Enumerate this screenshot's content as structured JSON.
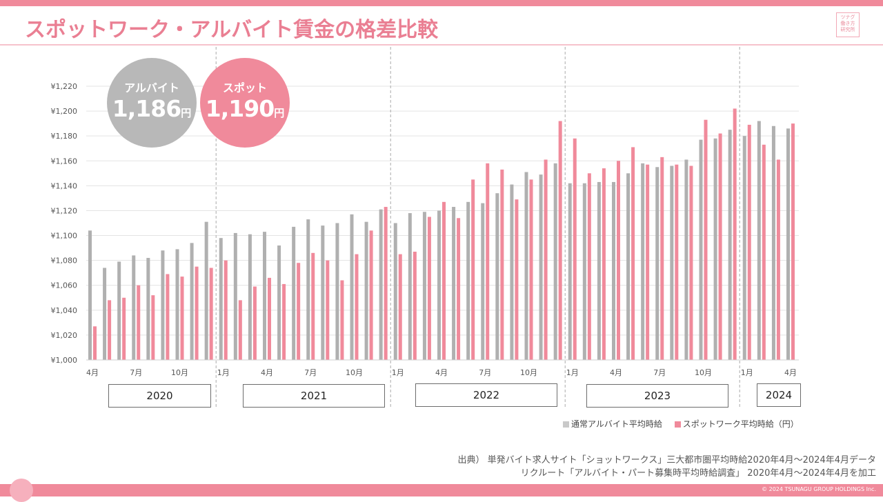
{
  "header": {
    "title": "スポットワーク・アルバイト賃金の格差比較",
    "logo_lines": [
      "ツナグ",
      "働き方",
      "研究所"
    ]
  },
  "highlights": {
    "arubaito": {
      "label": "アルバイト",
      "value": "1,186",
      "unit": "円"
    },
    "spot": {
      "label": "スポット",
      "value": "1,190",
      "unit": "円"
    }
  },
  "colors": {
    "gray": "#b0b0b0",
    "pink": "#f08a9b",
    "grid": "#e3e3e3",
    "divider": "#a8a8a8"
  },
  "chart_data": {
    "type": "bar",
    "title": "スポットワーク・アルバイト賃金の格差比較",
    "ylim": [
      1000,
      1220
    ],
    "yticks": [
      1000,
      1020,
      1040,
      1060,
      1080,
      1100,
      1120,
      1140,
      1160,
      1180,
      1200,
      1220
    ],
    "ytick_labels": [
      "¥1,000",
      "¥1,020",
      "¥1,040",
      "¥1,060",
      "¥1,080",
      "¥1,100",
      "¥1,120",
      "¥1,140",
      "¥1,160",
      "¥1,180",
      "¥1,200",
      "¥1,220"
    ],
    "categories": [
      "2020-04",
      "2020-05",
      "2020-06",
      "2020-07",
      "2020-08",
      "2020-09",
      "2020-10",
      "2020-11",
      "2020-12",
      "2021-01",
      "2021-02",
      "2021-03",
      "2021-04",
      "2021-05",
      "2021-06",
      "2021-07",
      "2021-08",
      "2021-09",
      "2021-10",
      "2021-11",
      "2021-12",
      "2022-01",
      "2022-02",
      "2022-03",
      "2022-04",
      "2022-05",
      "2022-06",
      "2022-07",
      "2022-08",
      "2022-09",
      "2022-10",
      "2022-11",
      "2022-12",
      "2023-01",
      "2023-02",
      "2023-03",
      "2023-04",
      "2023-05",
      "2023-06",
      "2023-07",
      "2023-08",
      "2023-09",
      "2023-10",
      "2023-11",
      "2023-12",
      "2024-01",
      "2024-02",
      "2024-03",
      "2024-04"
    ],
    "x_labels": [
      {
        "index": 0,
        "text": "4月"
      },
      {
        "index": 3,
        "text": "7月"
      },
      {
        "index": 6,
        "text": "10月"
      },
      {
        "index": 9,
        "text": "1月"
      },
      {
        "index": 12,
        "text": "4月"
      },
      {
        "index": 15,
        "text": "7月"
      },
      {
        "index": 18,
        "text": "10月"
      },
      {
        "index": 21,
        "text": "1月"
      },
      {
        "index": 24,
        "text": "4月"
      },
      {
        "index": 27,
        "text": "7月"
      },
      {
        "index": 30,
        "text": "10月"
      },
      {
        "index": 33,
        "text": "1月"
      },
      {
        "index": 36,
        "text": "4月"
      },
      {
        "index": 39,
        "text": "7月"
      },
      {
        "index": 42,
        "text": "10月"
      },
      {
        "index": 45,
        "text": "1月"
      },
      {
        "index": 48,
        "text": "4月"
      }
    ],
    "year_groups": [
      {
        "label": "2020",
        "start": 0,
        "end": 8
      },
      {
        "label": "2021",
        "start": 9,
        "end": 20
      },
      {
        "label": "2022",
        "start": 21,
        "end": 32
      },
      {
        "label": "2023",
        "start": 33,
        "end": 44
      },
      {
        "label": "2024",
        "start": 45,
        "end": 48
      }
    ],
    "dividers_before_index": [
      9,
      21,
      33,
      45
    ],
    "series": [
      {
        "name": "通常アルバイト平均時給",
        "color": "#b0b0b0",
        "values": [
          1104,
          1074,
          1079,
          1084,
          1082,
          1088,
          1089,
          1094,
          1111,
          1098,
          1102,
          1101,
          1103,
          1092,
          1107,
          1113,
          1108,
          1110,
          1117,
          1111,
          1121,
          1110,
          1118,
          1119,
          1120,
          1123,
          1127,
          1126,
          1134,
          1141,
          1151,
          1149,
          1158,
          1142,
          1142,
          1143,
          1143,
          1150,
          1158,
          1155,
          1156,
          1161,
          1177,
          1178,
          1185,
          1180,
          1192,
          1188,
          1186
        ]
      },
      {
        "name": "スポットワーク平均時給（円）",
        "color": "#f08a9b",
        "values": [
          1027,
          1048,
          1050,
          1060,
          1052,
          1069,
          1067,
          1075,
          1074,
          1080,
          1048,
          1059,
          1066,
          1061,
          1078,
          1086,
          1080,
          1064,
          1085,
          1104,
          1123,
          1085,
          1087,
          1115,
          1127,
          1114,
          1145,
          1158,
          1153,
          1129,
          1145,
          1161,
          1192,
          1178,
          1150,
          1154,
          1160,
          1171,
          1157,
          1163,
          1157,
          1156,
          1193,
          1182,
          1202,
          1189,
          1173,
          1161,
          1190
        ]
      }
    ],
    "xlabel": "",
    "ylabel": ""
  },
  "legend": [
    {
      "label": "通常アルバイト平均時給",
      "color": "#c9c9c9"
    },
    {
      "label": "スポットワーク平均時給（円）",
      "color": "#f08a9b"
    }
  ],
  "source": {
    "line1": "出典） 単発バイト求人サイト「ショットワークス」三大都市圏平均時給2020年4月～2024年4月データ",
    "line2": "リクルート「アルバイト・パート募集時平均時給調査」 2020年4月～2024年4月を加工"
  },
  "footer": {
    "copyright": "© 2024 TSUNAGU GROUP HOLDINGS Inc."
  }
}
